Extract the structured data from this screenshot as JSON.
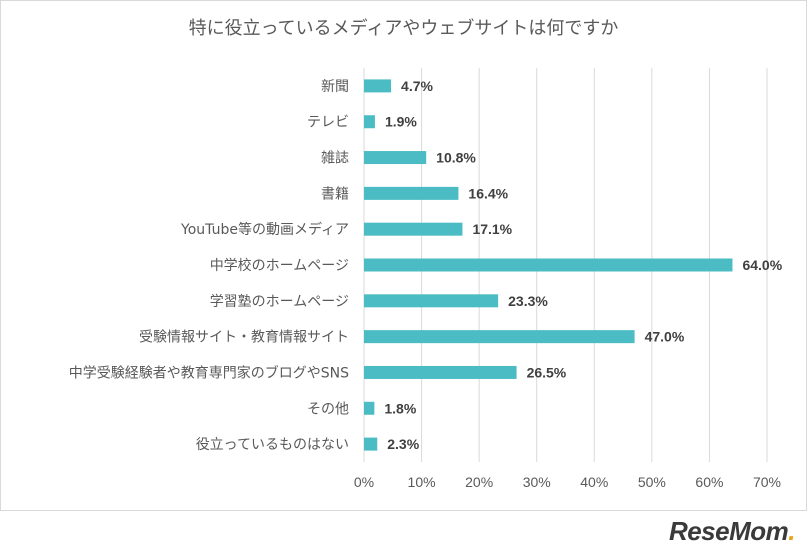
{
  "chart_data": {
    "type": "bar",
    "orientation": "horizontal",
    "title": "特に役立っているメディアやウェブサイトは何ですか",
    "categories": [
      "新聞",
      "テレビ",
      "雑誌",
      "書籍",
      "YouTube等の動画メディア",
      "中学校のホームページ",
      "学習塾のホームページ",
      "受験情報サイト・教育情報サイト",
      "中学受験経験者や教育専門家のブログやSNS",
      "その他",
      "役立っているものはない"
    ],
    "values": [
      4.7,
      1.9,
      10.8,
      16.4,
      17.1,
      64.0,
      23.3,
      47.0,
      26.5,
      1.8,
      2.3
    ],
    "value_labels": [
      "4.7%",
      "1.9%",
      "10.8%",
      "16.4%",
      "17.1%",
      "64.0%",
      "23.3%",
      "47.0%",
      "26.5%",
      "1.8%",
      "2.3%"
    ],
    "xlim": [
      0,
      70
    ],
    "xticks": [
      "0%",
      "10%",
      "20%",
      "30%",
      "40%",
      "50%",
      "60%",
      "70%"
    ],
    "grid": "vertical",
    "bar_color": "#4bbcc4",
    "grid_color": "#d9d9d9"
  },
  "logo": {
    "text": "ReseMom",
    "suffix": "."
  }
}
